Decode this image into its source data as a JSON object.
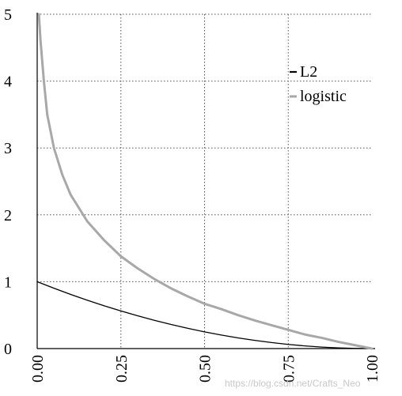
{
  "chart_data": {
    "type": "line",
    "title": "",
    "xlabel": "",
    "ylabel": "",
    "xlim": [
      0,
      1
    ],
    "ylim": [
      0,
      5
    ],
    "xticks": [
      "0.00",
      "0.25",
      "0.50",
      "0.75",
      "1.00"
    ],
    "yticks": [
      "0",
      "1",
      "2",
      "3",
      "4",
      "5"
    ],
    "grid": true,
    "legend_position": "top-right",
    "series": [
      {
        "name": "L2",
        "color": "#000000",
        "x": [
          0,
          0.05,
          0.1,
          0.15,
          0.2,
          0.25,
          0.3,
          0.35,
          0.4,
          0.45,
          0.5,
          0.55,
          0.6,
          0.65,
          0.7,
          0.75,
          0.8,
          0.85,
          0.9,
          0.95,
          1
        ],
        "y": [
          1,
          0.9025,
          0.81,
          0.7225,
          0.64,
          0.5625,
          0.49,
          0.4225,
          0.36,
          0.3025,
          0.25,
          0.2025,
          0.16,
          0.1225,
          0.09,
          0.0625,
          0.04,
          0.0225,
          0.01,
          0.0025,
          0
        ]
      },
      {
        "name": "logistic",
        "color": "#a8a8a8",
        "x": [
          0.005,
          0.01,
          0.02,
          0.03,
          0.05,
          0.075,
          0.1,
          0.15,
          0.2,
          0.25,
          0.3,
          0.35,
          0.4,
          0.45,
          0.5,
          0.55,
          0.6,
          0.65,
          0.7,
          0.75,
          0.8,
          0.85,
          0.9,
          0.95,
          1
        ],
        "y": [
          5,
          4.6,
          4.0,
          3.5,
          3.0,
          2.6,
          2.3,
          1.9,
          1.62,
          1.38,
          1.2,
          1.04,
          0.9,
          0.78,
          0.67,
          0.59,
          0.5,
          0.42,
          0.35,
          0.28,
          0.21,
          0.16,
          0.1,
          0.05,
          0
        ]
      }
    ]
  },
  "watermark": "https://blog.csdn.net/Crafts_Neo"
}
